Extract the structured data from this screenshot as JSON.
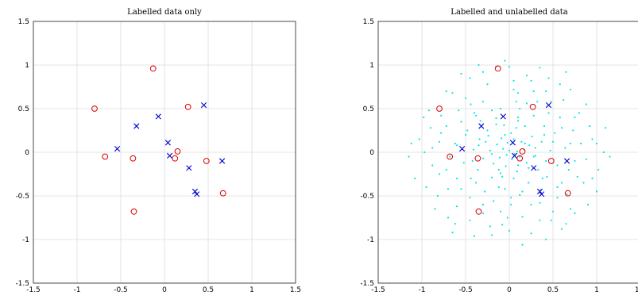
{
  "chart_data": [
    {
      "type": "scatter",
      "title": "Labelled data only",
      "xlim": [
        -1.5,
        1.5
      ],
      "ylim": [
        -1.5,
        1.5
      ],
      "xticks": [
        "-1.5",
        "-1",
        "-0.5",
        "0",
        "0.5",
        "1",
        "1.5"
      ],
      "yticks": [
        "1.5",
        "1",
        "0.5",
        "0",
        "-0.5",
        "-1",
        "-1.5"
      ],
      "grid": true,
      "series": [
        {
          "marker": "o",
          "color": "#dd0000",
          "points": [
            [
              -0.13,
              0.96
            ],
            [
              -0.8,
              0.5
            ],
            [
              0.27,
              0.52
            ],
            [
              -0.68,
              -0.05
            ],
            [
              -0.36,
              -0.07
            ],
            [
              0.15,
              0.01
            ],
            [
              0.12,
              -0.07
            ],
            [
              0.48,
              -0.1
            ],
            [
              0.67,
              -0.47
            ],
            [
              -0.35,
              -0.68
            ]
          ]
        },
        {
          "marker": "x",
          "color": "#0000cc",
          "points": [
            [
              0.45,
              0.54
            ],
            [
              -0.07,
              0.41
            ],
            [
              -0.32,
              0.3
            ],
            [
              0.04,
              0.11
            ],
            [
              -0.54,
              0.04
            ],
            [
              0.06,
              -0.04
            ],
            [
              0.28,
              -0.18
            ],
            [
              0.66,
              -0.1
            ],
            [
              0.35,
              -0.45
            ],
            [
              0.37,
              -0.48
            ]
          ]
        }
      ]
    },
    {
      "type": "scatter",
      "title": "Labelled and unlabelled data",
      "xlim": [
        -1.5,
        1.5
      ],
      "ylim": [
        -1.5,
        1.5
      ],
      "xticks": [
        "-1.5",
        "-1",
        "-0.5",
        "0",
        "0.5",
        "1",
        "1.5"
      ],
      "yticks": [
        "1.5",
        "1",
        "0.5",
        "0",
        "-0.5",
        "-1",
        "-1.5"
      ],
      "grid": true,
      "series": [
        {
          "marker": ".",
          "color": "#00e6e6",
          "points": [
            [
              0.09,
              0.01
            ],
            [
              -0.07,
              0.04
            ],
            [
              0.03,
              -0.08
            ],
            [
              -0.02,
              0.11
            ],
            [
              0.12,
              -0.05
            ],
            [
              -0.11,
              -0.06
            ],
            [
              0.05,
              0.15
            ],
            [
              -0.14,
              0.09
            ],
            [
              0.17,
              0.03
            ],
            [
              -0.04,
              -0.16
            ],
            [
              0.0,
              0.02
            ],
            [
              0.06,
              -0.02
            ],
            [
              -0.03,
              -0.03
            ],
            [
              0.14,
              0.12
            ],
            [
              -0.09,
              0.16
            ],
            [
              0.2,
              -0.12
            ],
            [
              -0.18,
              -0.13
            ],
            [
              0.02,
              0.22
            ],
            [
              -0.22,
              0.02
            ],
            [
              0.23,
              0.08
            ],
            [
              0.09,
              -0.22
            ],
            [
              -0.12,
              -0.2
            ],
            [
              0.26,
              0.18
            ],
            [
              -0.24,
              0.19
            ],
            [
              0.3,
              -0.04
            ],
            [
              -0.3,
              -0.07
            ],
            [
              0.05,
              -0.3
            ],
            [
              -0.06,
              0.31
            ],
            [
              0.18,
              0.3
            ],
            [
              -0.2,
              -0.29
            ],
            [
              0.33,
              -0.2
            ],
            [
              -0.34,
              0.15
            ],
            [
              0.1,
              0.36
            ],
            [
              -0.36,
              -0.2
            ],
            [
              0.37,
              0.12
            ],
            [
              0.22,
              -0.35
            ],
            [
              -0.15,
              0.39
            ],
            [
              -0.41,
              0.03
            ],
            [
              0.4,
              0.3
            ],
            [
              -0.05,
              -0.42
            ],
            [
              0.43,
              -0.28
            ],
            [
              -0.33,
              0.36
            ],
            [
              0.28,
              0.42
            ],
            [
              -0.44,
              -0.3
            ],
            [
              0.47,
              0.02
            ],
            [
              -0.48,
              0.25
            ],
            [
              0.12,
              -0.49
            ],
            [
              -0.28,
              -0.45
            ],
            [
              0.36,
              -0.43
            ],
            [
              -0.1,
              0.5
            ],
            [
              0.52,
              0.22
            ],
            [
              -0.52,
              -0.12
            ],
            [
              0.55,
              -0.15
            ],
            [
              -0.4,
              0.45
            ],
            [
              0.2,
              0.56
            ],
            [
              -0.18,
              -0.56
            ],
            [
              0.45,
              0.45
            ],
            [
              -0.55,
              0.35
            ],
            [
              0.58,
              0.4
            ],
            [
              -0.6,
              -0.3
            ],
            [
              0.02,
              -0.6
            ],
            [
              0.6,
              -0.35
            ],
            [
              -0.3,
              0.58
            ],
            [
              0.35,
              -0.58
            ],
            [
              -0.62,
              0.1
            ],
            [
              0.64,
              0.05
            ],
            [
              -0.45,
              -0.52
            ],
            [
              0.48,
              0.58
            ],
            [
              -0.1,
              -0.68
            ],
            [
              0.1,
              0.68
            ],
            [
              -0.68,
              -0.05
            ],
            [
              0.68,
              -0.2
            ],
            [
              -0.58,
              0.48
            ],
            [
              0.55,
              -0.52
            ],
            [
              0.28,
              0.7
            ],
            [
              -0.3,
              -0.7
            ],
            [
              -0.72,
              0.3
            ],
            [
              0.73,
              0.25
            ],
            [
              0.15,
              -0.74
            ],
            [
              -0.5,
              0.62
            ],
            [
              0.66,
              -0.48
            ],
            [
              -0.7,
              -0.42
            ],
            [
              0.42,
              0.7
            ],
            [
              -0.25,
              0.78
            ],
            [
              0.78,
              -0.28
            ],
            [
              -0.8,
              0.12
            ],
            [
              0.82,
              0.1
            ],
            [
              0.05,
              0.82
            ],
            [
              -0.08,
              -0.83
            ],
            [
              0.62,
              0.6
            ],
            [
              -0.6,
              -0.62
            ],
            [
              0.35,
              -0.78
            ],
            [
              -0.78,
              0.42
            ],
            [
              0.8,
              0.45
            ],
            [
              -0.45,
              -0.78
            ],
            [
              0.88,
              -0.08
            ],
            [
              -0.88,
              -0.15
            ],
            [
              0.2,
              0.88
            ],
            [
              0.48,
              -0.78
            ],
            [
              -0.65,
              0.68
            ],
            [
              0.7,
              -0.65
            ],
            [
              -0.9,
              0.28
            ],
            [
              0.92,
              0.3
            ],
            [
              -0.3,
              0.92
            ],
            [
              0.25,
              -0.93
            ],
            [
              -0.2,
              -0.95
            ],
            [
              0.58,
              0.78
            ],
            [
              -0.82,
              -0.5
            ],
            [
              0.95,
              -0.3
            ],
            [
              -0.97,
              0.0
            ],
            [
              1.0,
              0.1
            ],
            [
              0.0,
              0.98
            ],
            [
              -0.15,
              0.98
            ],
            [
              0.7,
              0.72
            ],
            [
              -0.72,
              0.7
            ],
            [
              0.75,
              -0.7
            ],
            [
              -0.7,
              -0.75
            ],
            [
              1.02,
              -0.2
            ],
            [
              -1.03,
              0.15
            ],
            [
              0.35,
              0.97
            ],
            [
              -0.4,
              -0.96
            ],
            [
              0.88,
              0.55
            ],
            [
              -0.92,
              0.48
            ],
            [
              0.6,
              -0.88
            ],
            [
              -0.55,
              0.9
            ],
            [
              1.08,
              0.0
            ],
            [
              -1.08,
              -0.3
            ],
            [
              0.15,
              -1.06
            ],
            [
              -0.05,
              1.05
            ],
            [
              0.9,
              -0.6
            ],
            [
              -0.85,
              -0.65
            ],
            [
              1.1,
              0.28
            ],
            [
              -1.12,
              0.1
            ],
            [
              0.42,
              -1.0
            ],
            [
              -0.35,
              1.0
            ],
            [
              0.65,
              0.92
            ],
            [
              -0.65,
              -0.92
            ],
            [
              1.15,
              -0.05
            ],
            [
              -1.15,
              -0.05
            ],
            [
              0.1,
              0.4
            ],
            [
              -0.25,
              0.25
            ],
            [
              0.22,
              -0.18
            ],
            [
              -0.08,
              -0.28
            ],
            [
              0.3,
              0.05
            ],
            [
              -0.15,
              0.32
            ],
            [
              0.42,
              -0.1
            ],
            [
              -0.38,
              -0.35
            ],
            [
              0.5,
              0.12
            ],
            [
              -0.5,
              0.2
            ],
            [
              0.15,
              -0.45
            ],
            [
              -0.2,
              0.48
            ],
            [
              0.55,
              -0.4
            ],
            [
              -0.44,
              0.55
            ],
            [
              0.32,
              0.58
            ],
            [
              -0.3,
              -0.6
            ],
            [
              0.7,
              0.1
            ],
            [
              -0.72,
              -0.2
            ],
            [
              0.05,
              0.72
            ],
            [
              -0.02,
              -0.75
            ],
            [
              0.75,
              0.4
            ],
            [
              -0.78,
              0.22
            ],
            [
              0.5,
              -0.68
            ],
            [
              -0.55,
              -0.42
            ],
            [
              0.85,
              -0.35
            ],
            [
              -0.88,
              0.05
            ],
            [
              0.25,
              0.82
            ],
            [
              -0.22,
              -0.85
            ],
            [
              0.95,
              0.15
            ],
            [
              -0.95,
              -0.4
            ],
            [
              0.45,
              0.85
            ],
            [
              -0.45,
              0.85
            ],
            [
              1.0,
              -0.45
            ],
            [
              -0.98,
              0.4
            ],
            [
              0.65,
              -0.82
            ],
            [
              -0.62,
              -0.82
            ],
            [
              0.0,
              -0.9
            ],
            [
              0.12,
              0.5
            ],
            [
              -0.35,
              0.08
            ],
            [
              0.38,
              -0.3
            ],
            [
              -0.12,
              -0.4
            ],
            [
              0.6,
              0.28
            ],
            [
              -0.6,
              0.08
            ],
            [
              0.25,
              -0.6
            ],
            [
              -0.38,
              0.42
            ],
            [
              0.08,
              0.58
            ],
            [
              0.02,
              -0.52
            ],
            [
              0.75,
              -0.1
            ],
            [
              -0.8,
              -0.25
            ],
            [
              0.4,
              0.2
            ],
            [
              -0.42,
              -0.1
            ],
            [
              0.18,
              0.1
            ],
            [
              -0.2,
              -0.02
            ],
            [
              0.1,
              -0.15
            ],
            [
              -0.05,
              0.2
            ],
            [
              0.28,
              -0.05
            ],
            [
              -0.27,
              0.12
            ],
            [
              0.08,
              0.28
            ],
            [
              -0.1,
              -0.24
            ]
          ]
        },
        {
          "marker": "o",
          "color": "#dd0000",
          "points": [
            [
              -0.13,
              0.96
            ],
            [
              -0.8,
              0.5
            ],
            [
              0.27,
              0.52
            ],
            [
              -0.68,
              -0.05
            ],
            [
              -0.36,
              -0.07
            ],
            [
              0.15,
              0.01
            ],
            [
              0.12,
              -0.07
            ],
            [
              0.48,
              -0.1
            ],
            [
              0.67,
              -0.47
            ],
            [
              -0.35,
              -0.68
            ]
          ]
        },
        {
          "marker": "x",
          "color": "#0000cc",
          "points": [
            [
              0.45,
              0.54
            ],
            [
              -0.07,
              0.41
            ],
            [
              -0.32,
              0.3
            ],
            [
              0.04,
              0.11
            ],
            [
              -0.54,
              0.04
            ],
            [
              0.06,
              -0.04
            ],
            [
              0.28,
              -0.18
            ],
            [
              0.66,
              -0.1
            ],
            [
              0.35,
              -0.45
            ],
            [
              0.37,
              -0.48
            ]
          ]
        }
      ]
    }
  ]
}
